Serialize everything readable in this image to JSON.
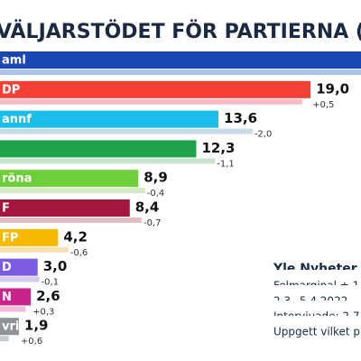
{
  "chart_data": {
    "type": "bar",
    "orientation": "horizontal",
    "title": "VÄLJARSTÖDET FÖR PARTIERNA (",
    "categories": [
      "aml",
      "DP",
      "annf",
      null,
      "röna",
      "F",
      "FP",
      "D",
      "N",
      "vriga"
    ],
    "values": [
      22.0,
      19.0,
      13.6,
      12.3,
      8.9,
      8.4,
      4.2,
      3.0,
      2.6,
      1.9
    ],
    "value_labels": [
      null,
      "19,0",
      "13,6",
      "12,3",
      "8,9",
      "8,4",
      "4,2",
      "3,0",
      "2,6",
      "1,9"
    ],
    "changes": [
      0,
      0.5,
      -2.0,
      -1.1,
      -0.4,
      -0.7,
      -0.6,
      -0.1,
      0.3,
      0.6
    ],
    "change_labels": [
      null,
      "+0,5",
      "-2,0",
      "-1,1",
      "-0,4",
      "-0,7",
      "-0,6",
      "-0,1",
      "+0,3",
      "+0,6"
    ],
    "colors": [
      "#1b47b5",
      "#f43f37",
      "#1bbde9",
      "#20a24a",
      "#6fcf3a",
      "#a3173f",
      "#f7b900",
      "#7a5be2",
      "#c9248b",
      "#8f9396"
    ],
    "prev_colors": [
      "#a9c3ee",
      "#f6bcc4",
      "#c6dde8",
      "#c9e3cc",
      "#d3ecc6",
      "#e3bcc6",
      "#f6e0b0",
      "#d6ccf2",
      "#efbcd9",
      "#c8cacc"
    ],
    "notes": [
      "Yle Nyheter /",
      "Felmarginal ± 1",
      "2.3.–5.4.2022",
      "Intervjuade: 2 7",
      "Uppgett vilket p"
    ]
  }
}
